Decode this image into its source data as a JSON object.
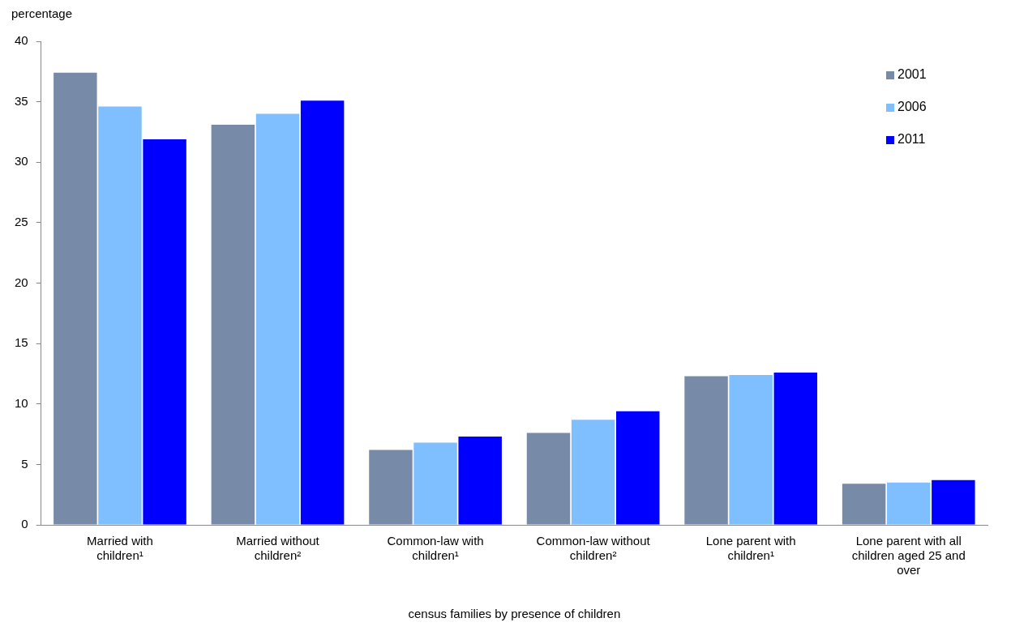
{
  "chart_data": {
    "type": "bar",
    "xlabel": "census families by presence of children",
    "ylabel": "percentage",
    "categories": [
      "Married with children¹",
      "Married without children²",
      "Common-law with children¹",
      "Common-law without children²",
      "Lone parent with children¹",
      "Lone parent with all children aged 25 and over"
    ],
    "series": [
      {
        "name": "2001",
        "color": "#778ba8",
        "values": [
          37.4,
          33.1,
          6.2,
          7.6,
          12.3,
          3.4
        ]
      },
      {
        "name": "2006",
        "color": "#80bfff",
        "values": [
          34.6,
          34.0,
          6.8,
          8.7,
          12.4,
          3.5
        ]
      },
      {
        "name": "2011",
        "color": "#0000ff",
        "values": [
          31.9,
          35.1,
          7.3,
          9.4,
          12.6,
          3.7
        ]
      }
    ],
    "ylim": [
      0,
      40
    ],
    "yticks": [
      0,
      5,
      10,
      15,
      20,
      25,
      30,
      35,
      40
    ],
    "grid": false,
    "legend": "top right"
  }
}
